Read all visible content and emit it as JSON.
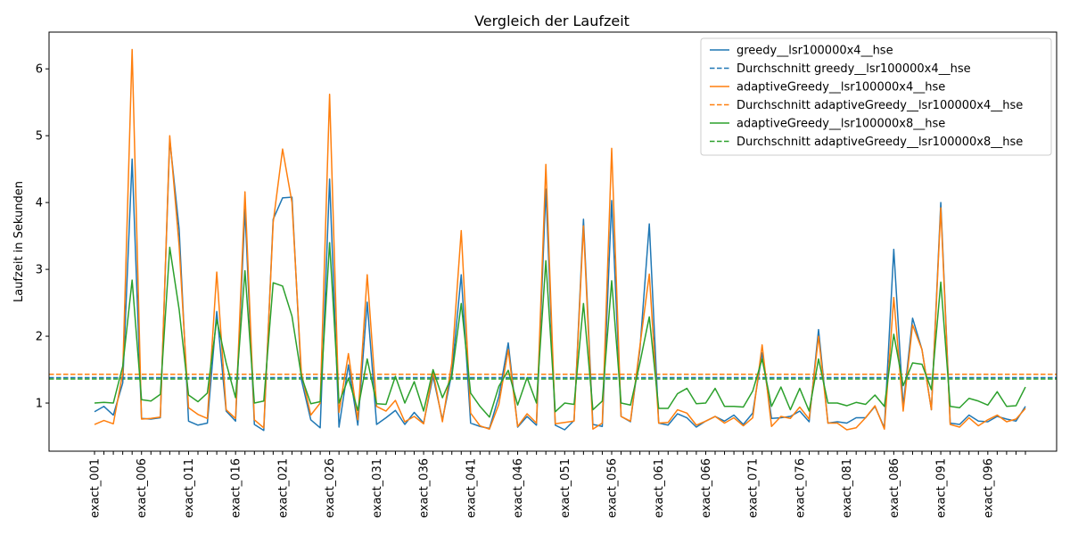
{
  "chart_data": {
    "type": "line",
    "title": "Vergleich der Laufzeit",
    "xlabel": "",
    "ylabel": "Laufzeit in Sekunden",
    "ylim": [
      0.28,
      6.55
    ],
    "yticks": [
      1,
      2,
      3,
      4,
      5,
      6
    ],
    "x": [
      "exact_001",
      "exact_002",
      "exact_003",
      "exact_004",
      "exact_005",
      "exact_006",
      "exact_007",
      "exact_008",
      "exact_009",
      "exact_010",
      "exact_011",
      "exact_012",
      "exact_013",
      "exact_014",
      "exact_015",
      "exact_016",
      "exact_017",
      "exact_018",
      "exact_019",
      "exact_020",
      "exact_021",
      "exact_022",
      "exact_023",
      "exact_024",
      "exact_025",
      "exact_026",
      "exact_027",
      "exact_028",
      "exact_029",
      "exact_030",
      "exact_031",
      "exact_032",
      "exact_033",
      "exact_034",
      "exact_035",
      "exact_036",
      "exact_037",
      "exact_038",
      "exact_039",
      "exact_040",
      "exact_041",
      "exact_042",
      "exact_043",
      "exact_044",
      "exact_045",
      "exact_046",
      "exact_047",
      "exact_048",
      "exact_049",
      "exact_050",
      "exact_051",
      "exact_052",
      "exact_053",
      "exact_054",
      "exact_055",
      "exact_056",
      "exact_057",
      "exact_058",
      "exact_059",
      "exact_060",
      "exact_061",
      "exact_062",
      "exact_063",
      "exact_064",
      "exact_065",
      "exact_066",
      "exact_067",
      "exact_068",
      "exact_069",
      "exact_070",
      "exact_071",
      "exact_072",
      "exact_073",
      "exact_074",
      "exact_075",
      "exact_076",
      "exact_077",
      "exact_078",
      "exact_079",
      "exact_080",
      "exact_081",
      "exact_082",
      "exact_083",
      "exact_084",
      "exact_085",
      "exact_086",
      "exact_087",
      "exact_088",
      "exact_089",
      "exact_090",
      "exact_091",
      "exact_092",
      "exact_093",
      "exact_094",
      "exact_095",
      "exact_096",
      "exact_097",
      "exact_098",
      "exact_099",
      "exact_100"
    ],
    "xticks_labeled": [
      "exact_001",
      "exact_006",
      "exact_011",
      "exact_016",
      "exact_021",
      "exact_026",
      "exact_031",
      "exact_036",
      "exact_041",
      "exact_046",
      "exact_051",
      "exact_056",
      "exact_061",
      "exact_066",
      "exact_071",
      "exact_076",
      "exact_081",
      "exact_086",
      "exact_091",
      "exact_096"
    ],
    "series": [
      {
        "name": "greedy__lsr100000x4__hse",
        "color": "#1f77b4",
        "style": "solid",
        "values": [
          0.87,
          0.95,
          0.82,
          1.3,
          4.65,
          0.77,
          0.76,
          0.78,
          4.95,
          3.6,
          0.73,
          0.67,
          0.7,
          2.37,
          0.88,
          0.73,
          3.9,
          0.68,
          0.59,
          3.75,
          4.07,
          4.08,
          1.35,
          0.75,
          0.63,
          4.35,
          0.64,
          1.57,
          0.67,
          2.51,
          0.68,
          0.78,
          0.89,
          0.68,
          0.86,
          0.7,
          1.4,
          0.75,
          1.45,
          2.92,
          0.7,
          0.65,
          0.62,
          1.1,
          1.9,
          0.64,
          0.8,
          0.67,
          4.2,
          0.67,
          0.6,
          0.74,
          3.75,
          0.68,
          0.65,
          4.03,
          0.8,
          0.72,
          1.8,
          3.68,
          0.7,
          0.67,
          0.84,
          0.78,
          0.64,
          0.73,
          0.8,
          0.73,
          0.82,
          0.68,
          0.85,
          1.75,
          0.77,
          0.78,
          0.8,
          0.88,
          0.72,
          2.1,
          0.7,
          0.72,
          0.7,
          0.78,
          0.78,
          0.95,
          0.63,
          3.3,
          0.95,
          2.27,
          1.8,
          0.9,
          4.0,
          0.7,
          0.68,
          0.82,
          0.73,
          0.72,
          0.8,
          0.76,
          0.73,
          0.95
        ]
      },
      {
        "name": "Durchschnitt greedy__lsr100000x4__hse",
        "color": "#1f77b4",
        "style": "dashed",
        "mean": 1.38
      },
      {
        "name": "adaptiveGreedy__lsr100000x4__hse",
        "color": "#ff7f0e",
        "style": "solid",
        "values": [
          0.68,
          0.74,
          0.69,
          1.45,
          6.29,
          0.76,
          0.77,
          0.79,
          5.0,
          3.35,
          0.93,
          0.83,
          0.77,
          2.96,
          0.9,
          0.77,
          4.16,
          0.75,
          0.63,
          3.7,
          4.8,
          4.0,
          1.45,
          0.82,
          1.0,
          5.62,
          0.86,
          1.74,
          0.75,
          2.92,
          0.95,
          0.88,
          1.04,
          0.72,
          0.8,
          0.69,
          1.47,
          0.72,
          1.6,
          3.58,
          0.85,
          0.66,
          0.61,
          0.98,
          1.8,
          0.65,
          0.84,
          0.7,
          4.57,
          0.69,
          0.71,
          0.73,
          3.65,
          0.61,
          0.7,
          4.81,
          0.8,
          0.73,
          1.85,
          2.93,
          0.7,
          0.71,
          0.9,
          0.85,
          0.67,
          0.73,
          0.8,
          0.7,
          0.78,
          0.66,
          0.78,
          1.87,
          0.65,
          0.8,
          0.77,
          0.94,
          0.76,
          2.0,
          0.7,
          0.7,
          0.6,
          0.63,
          0.78,
          0.96,
          0.61,
          2.58,
          0.88,
          2.17,
          1.8,
          0.9,
          3.92,
          0.68,
          0.64,
          0.78,
          0.66,
          0.75,
          0.82,
          0.72,
          0.76,
          0.92
        ]
      },
      {
        "name": "Durchschnitt adaptiveGreedy__lsr100000x4__hse",
        "color": "#ff7f0e",
        "style": "dashed",
        "mean": 1.43
      },
      {
        "name": "adaptiveGreedy__lsr100000x8__hse",
        "color": "#2ca02c",
        "style": "solid",
        "values": [
          1.0,
          1.01,
          1.0,
          1.55,
          2.84,
          1.05,
          1.03,
          1.13,
          3.33,
          2.4,
          1.12,
          1.02,
          1.15,
          2.25,
          1.6,
          1.08,
          2.98,
          1.0,
          1.03,
          2.8,
          2.75,
          2.3,
          1.4,
          0.99,
          1.02,
          3.4,
          1.0,
          1.37,
          0.89,
          1.66,
          0.99,
          0.98,
          1.4,
          1.0,
          1.32,
          0.88,
          1.5,
          1.08,
          1.4,
          2.49,
          1.15,
          0.95,
          0.79,
          1.25,
          1.49,
          0.97,
          1.38,
          1.0,
          3.13,
          0.87,
          1.0,
          0.98,
          2.49,
          0.9,
          1.03,
          2.83,
          1.0,
          0.97,
          1.6,
          2.29,
          0.92,
          0.92,
          1.14,
          1.22,
          0.99,
          1.0,
          1.22,
          0.95,
          0.95,
          0.94,
          1.18,
          1.66,
          0.95,
          1.24,
          0.9,
          1.22,
          0.88,
          1.66,
          1.0,
          1.0,
          0.96,
          1.01,
          0.98,
          1.12,
          0.95,
          2.03,
          1.26,
          1.6,
          1.58,
          1.2,
          2.81,
          0.95,
          0.93,
          1.07,
          1.03,
          0.97,
          1.17,
          0.95,
          0.96,
          1.24
        ]
      },
      {
        "name": "Durchschnitt adaptiveGreedy__lsr100000x8__hse",
        "color": "#2ca02c",
        "style": "dashed",
        "mean": 1.36
      }
    ],
    "legend_position": "top-right",
    "grid": false
  }
}
